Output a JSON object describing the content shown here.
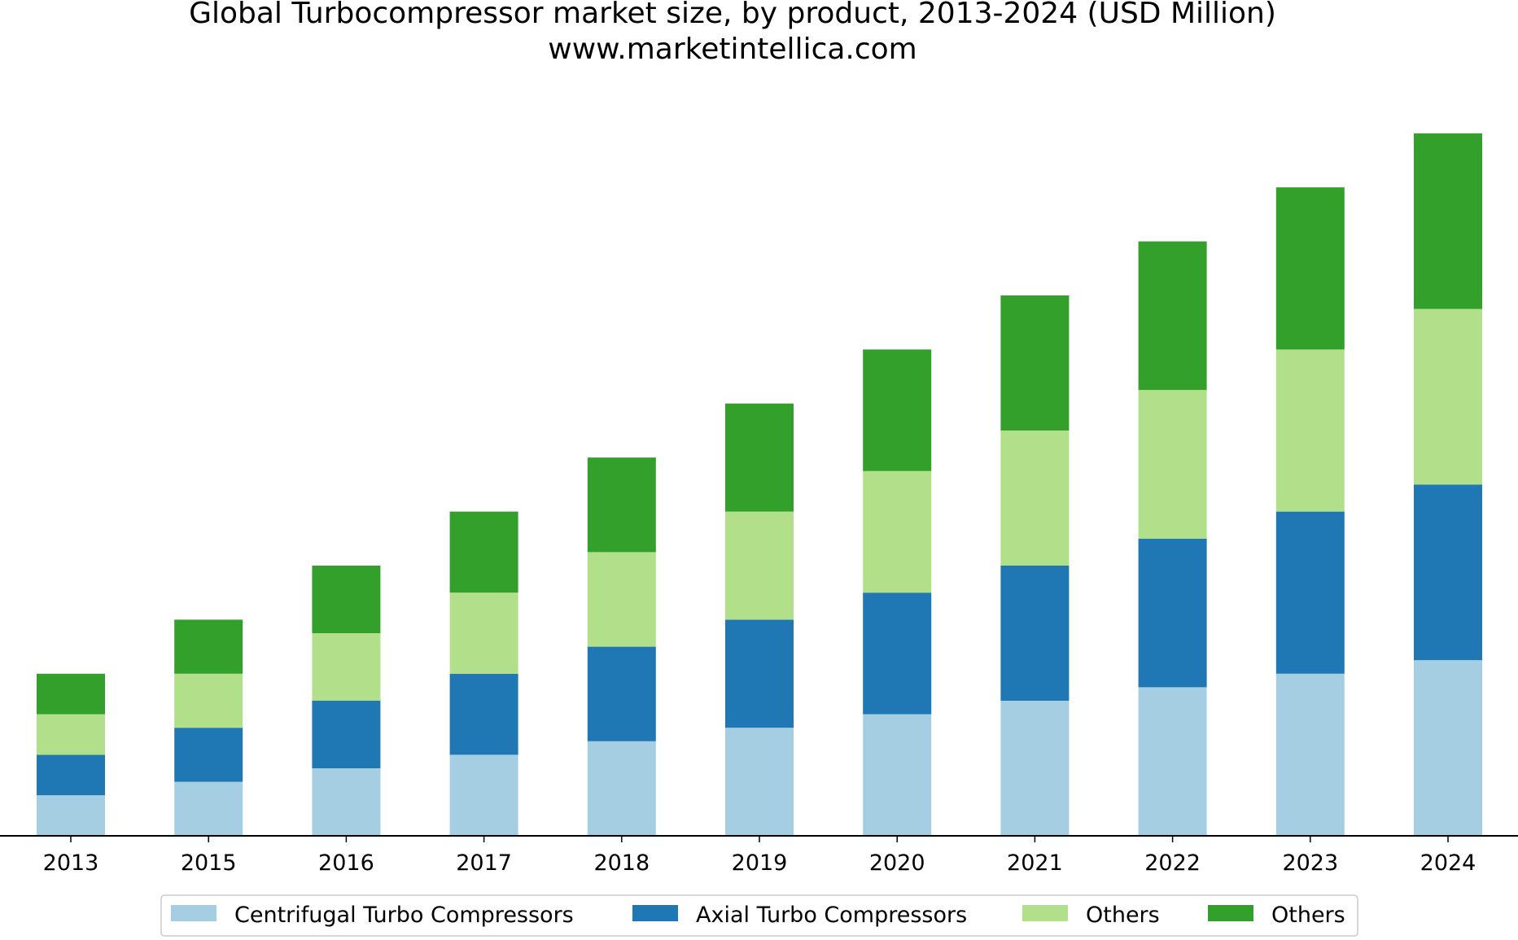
{
  "chart_data": {
    "type": "bar",
    "stacked": true,
    "title": "Global Turbocompressor market size, by product, 2013-2024 (USD Million)",
    "subtitle": "www.marketintellica.com",
    "xlabel": "",
    "ylabel": "",
    "y_axis_visible": false,
    "grid": false,
    "legend_position": "bottom",
    "categories": [
      "2013",
      "2015",
      "2016",
      "2017",
      "2018",
      "2019",
      "2020",
      "2021",
      "2022",
      "2023",
      "2024"
    ],
    "ylim": [
      0,
      52
    ],
    "series": [
      {
        "name": "Centrifugal Turbo Compressors",
        "color": "#a6cee3",
        "values": [
          3.0,
          4.0,
          5.0,
          6.0,
          7.0,
          8.0,
          9.0,
          10.0,
          11.0,
          12.0,
          13.0
        ]
      },
      {
        "name": "Axial Turbo Compressors",
        "color": "#1f78b4",
        "values": [
          3.0,
          4.0,
          5.0,
          6.0,
          7.0,
          8.0,
          9.0,
          10.0,
          11.0,
          12.0,
          13.0
        ]
      },
      {
        "name": "Others",
        "color": "#b2df8a",
        "values": [
          3.0,
          4.0,
          5.0,
          6.0,
          7.0,
          8.0,
          9.0,
          10.0,
          11.0,
          12.0,
          13.0
        ]
      },
      {
        "name": "Others",
        "color": "#33a02c",
        "values": [
          3.0,
          4.0,
          5.0,
          6.0,
          7.0,
          8.0,
          9.0,
          10.0,
          11.0,
          12.0,
          13.0
        ]
      }
    ]
  }
}
